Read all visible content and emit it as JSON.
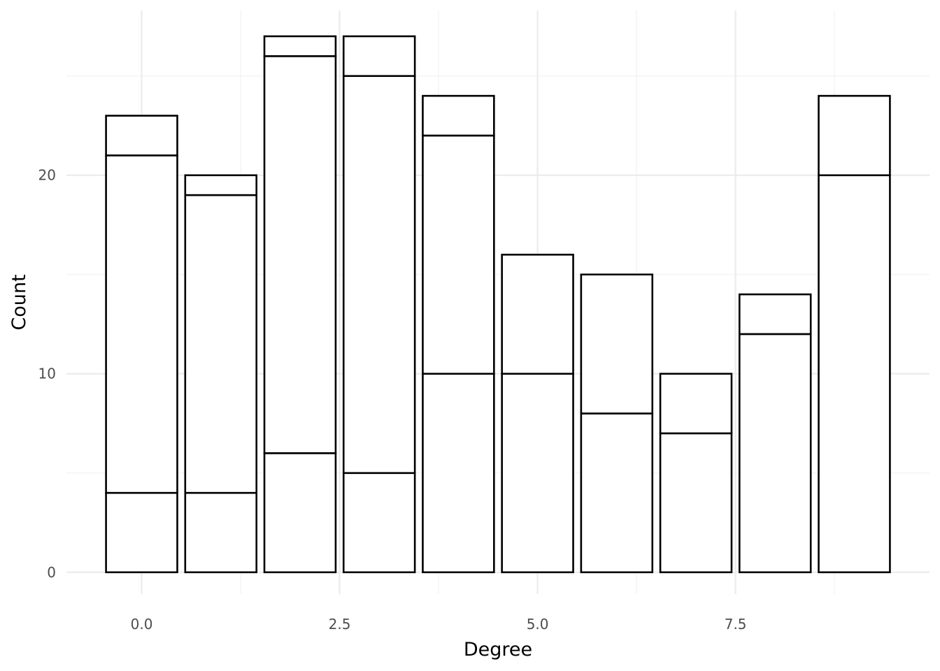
{
  "chart_data": {
    "type": "bar",
    "stacked": true,
    "title": "",
    "xlabel": "Degree",
    "ylabel": "Count",
    "xlim": [
      -0.95,
      9.95
    ],
    "ylim": [
      -1.1,
      28.3
    ],
    "x_ticks": [
      0.0,
      2.5,
      5.0,
      7.5
    ],
    "x_tick_labels": [
      "0.0",
      "2.5",
      "5.0",
      "7.5"
    ],
    "y_ticks": [
      0,
      10,
      20
    ],
    "y_tick_labels": [
      "0",
      "10",
      "20"
    ],
    "x_minor_ticks": [
      1.25,
      3.75,
      6.25,
      8.75
    ],
    "y_minor_ticks": [
      5,
      15,
      25
    ],
    "grid": true,
    "legend": "none",
    "fill_color": "#ffffff",
    "outline_color": "#000000",
    "categories": [
      0,
      1,
      2,
      3,
      4,
      5,
      6,
      7,
      8,
      9
    ],
    "bar_width": 0.9,
    "segments": [
      [
        4,
        17,
        2
      ],
      [
        4,
        15,
        1
      ],
      [
        6,
        20,
        1
      ],
      [
        5,
        20,
        2
      ],
      [
        10,
        12,
        2
      ],
      [
        10,
        6
      ],
      [
        8,
        7
      ],
      [
        7,
        3
      ],
      [
        12,
        2
      ],
      [
        20,
        4
      ]
    ],
    "totals": [
      23,
      20,
      27,
      27,
      24,
      16,
      15,
      10,
      14,
      24
    ]
  }
}
